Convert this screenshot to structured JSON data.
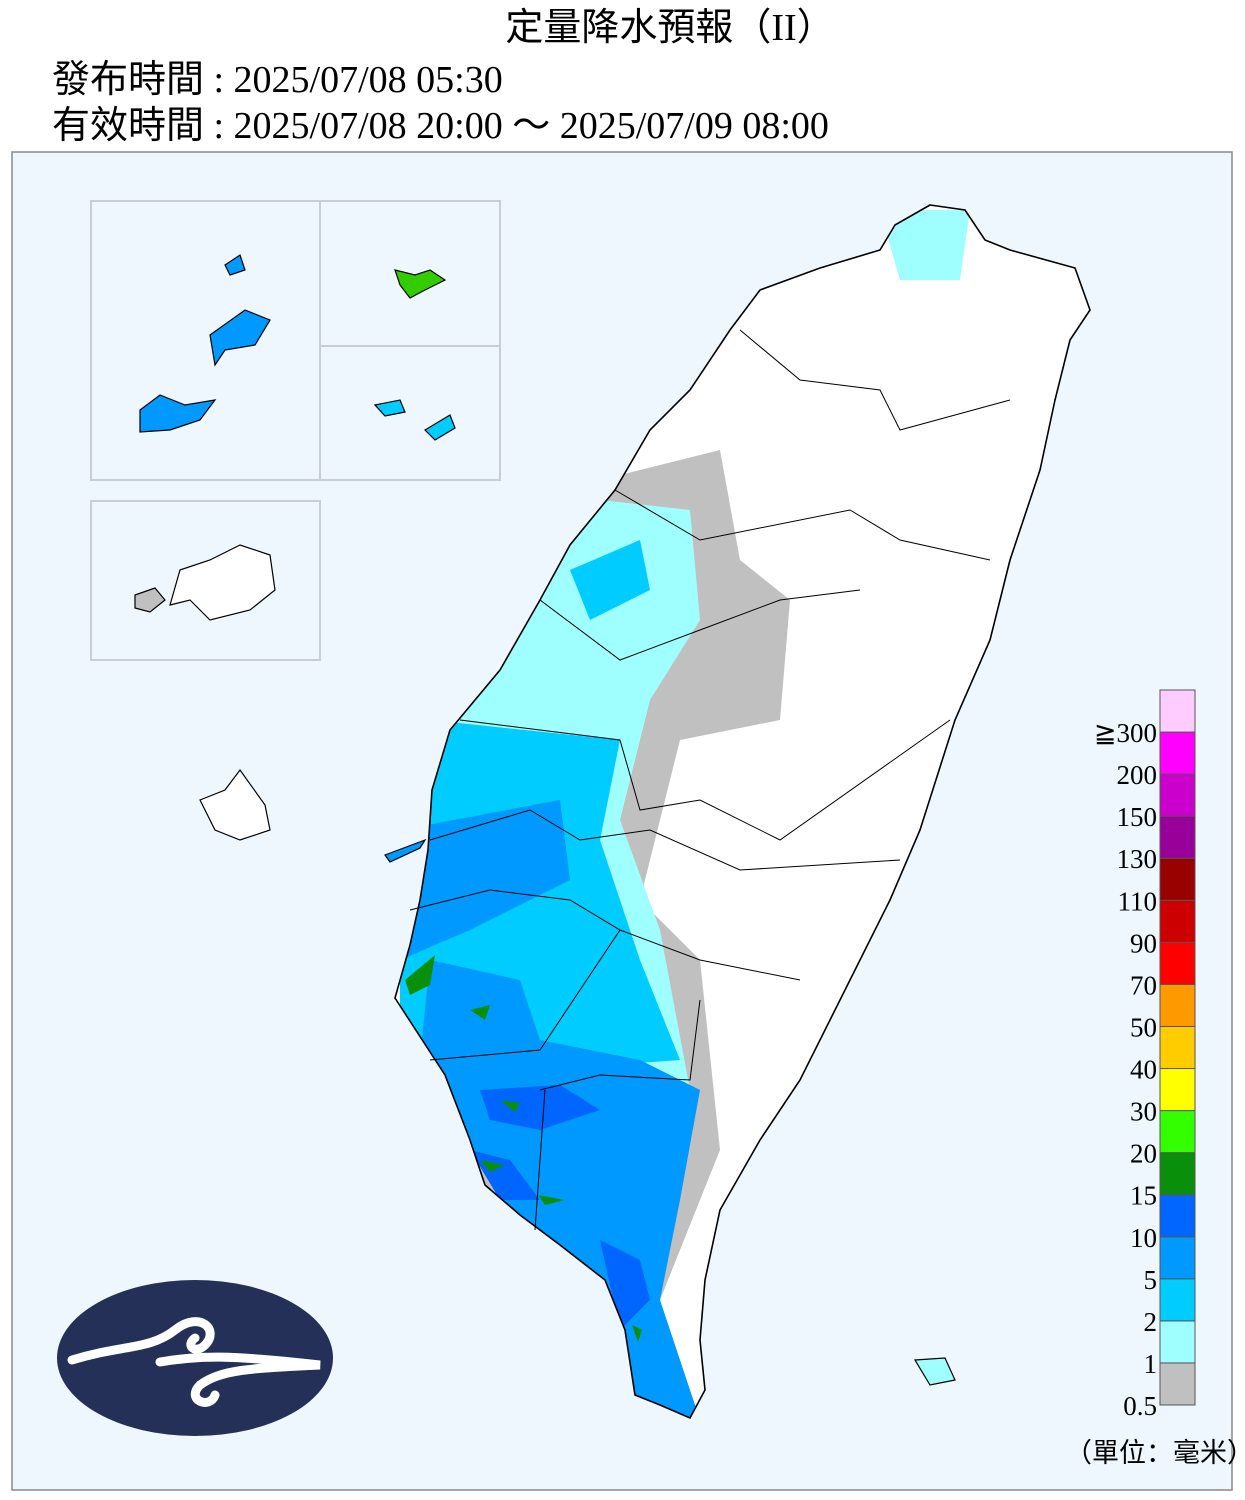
{
  "header": {
    "title": "定量降水預報（II）",
    "issued": "發布時間 : 2025/07/08 05:30",
    "valid": "有效時間 : 2025/07/08 20:00 ～ 2025/07/09 08:00"
  },
  "legend": {
    "labels": [
      "0.5",
      "1",
      "2",
      "5",
      "10",
      "15",
      "20",
      "30",
      "40",
      "50",
      "70",
      "90",
      "110",
      "130",
      "150",
      "200",
      "≧300"
    ],
    "colors": [
      "#c0c0c0",
      "#9ffffe",
      "#00ccff",
      "#0099ff",
      "#0066ff",
      "#0a8f0a",
      "#33ff00",
      "#ffff00",
      "#ffcc00",
      "#ff9900",
      "#ff0000",
      "#cc0000",
      "#990000",
      "#990099",
      "#cc00cc",
      "#ff00ff",
      "#ffccff"
    ],
    "unit": "（單位：毫米）"
  }
}
